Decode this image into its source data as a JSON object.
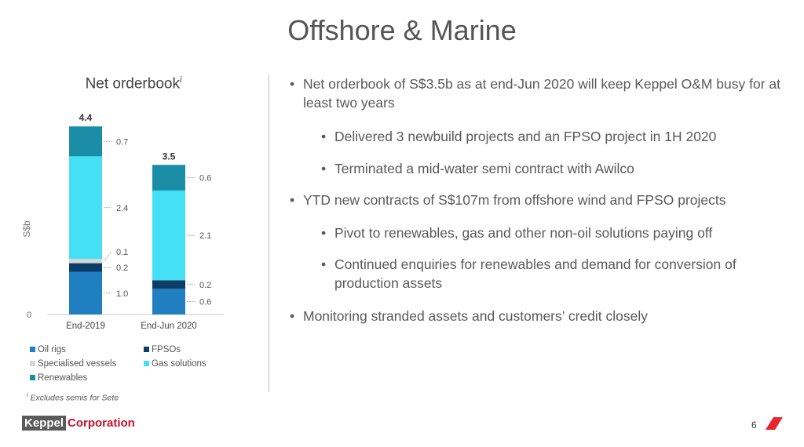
{
  "slide": {
    "title": "Offshore & Marine",
    "page_number": "6"
  },
  "chart_title": {
    "text": "Net orderbook",
    "footnote_marker": "i"
  },
  "chart_data": {
    "type": "bar",
    "stacked": true,
    "categories": [
      "End-2019",
      "End-Jun 2020"
    ],
    "series": [
      {
        "name": "Oil rigs",
        "values": [
          1.0,
          0.6
        ],
        "color": "#1f7fc1"
      },
      {
        "name": "FPSOs",
        "values": [
          0.2,
          0.2
        ],
        "color": "#0c3d66"
      },
      {
        "name": "Specialised vessels",
        "values": [
          0.1,
          0.0
        ],
        "color": "#d6d6d6"
      },
      {
        "name": "Gas solutions",
        "values": [
          2.4,
          2.1
        ],
        "color": "#45e0f5"
      },
      {
        "name": "Renewables",
        "values": [
          0.7,
          0.6
        ],
        "color": "#1a8ea6"
      }
    ],
    "series_value_labels": [
      [
        "1.0",
        "0.6"
      ],
      [
        "0.2",
        "0.2"
      ],
      [
        "0.1",
        ""
      ],
      [
        "2.4",
        "2.1"
      ],
      [
        "0.7",
        "0.6"
      ]
    ],
    "totals": [
      "4.4",
      "3.5"
    ],
    "ylabel": "S$b",
    "y_tick_label": "0",
    "ylim": [
      0,
      4.7
    ],
    "legend_position": "bottom",
    "grid": false
  },
  "legend": [
    {
      "label": "Oil rigs",
      "color": "#1f7fc1"
    },
    {
      "label": "FPSOs",
      "color": "#0c3d66"
    },
    {
      "label": "Specialised vessels",
      "color": "#d6d6d6"
    },
    {
      "label": "Gas solutions",
      "color": "#45e0f5"
    },
    {
      "label": "Renewables",
      "color": "#1a8ea6"
    }
  ],
  "footnote": {
    "marker": "i",
    "text": "Excludes semis for Sete"
  },
  "bullets": [
    {
      "level": 1,
      "text": "Net orderbook of S$3.5b as at end-Jun 2020 will keep Keppel O&M busy for at least two years"
    },
    {
      "level": 2,
      "text": "Delivered 3 newbuild projects and an FPSO project in 1H 2020"
    },
    {
      "level": 2,
      "text": "Terminated a mid-water semi contract with Awilco"
    },
    {
      "level": 1,
      "text": "YTD new contracts of S$107m from offshore wind and FPSO projects"
    },
    {
      "level": 2,
      "text": "Pivot to renewables, gas and other non-oil solutions paying off"
    },
    {
      "level": 2,
      "text": "Continued enquiries for renewables and demand for conversion of production assets"
    },
    {
      "level": 1,
      "text": "Monitoring stranded assets and customers’ credit closely"
    }
  ],
  "logo": {
    "word1": "Keppel",
    "word2": "Corporation",
    "accent": "#c8102e"
  },
  "bullet_symbol": "•"
}
